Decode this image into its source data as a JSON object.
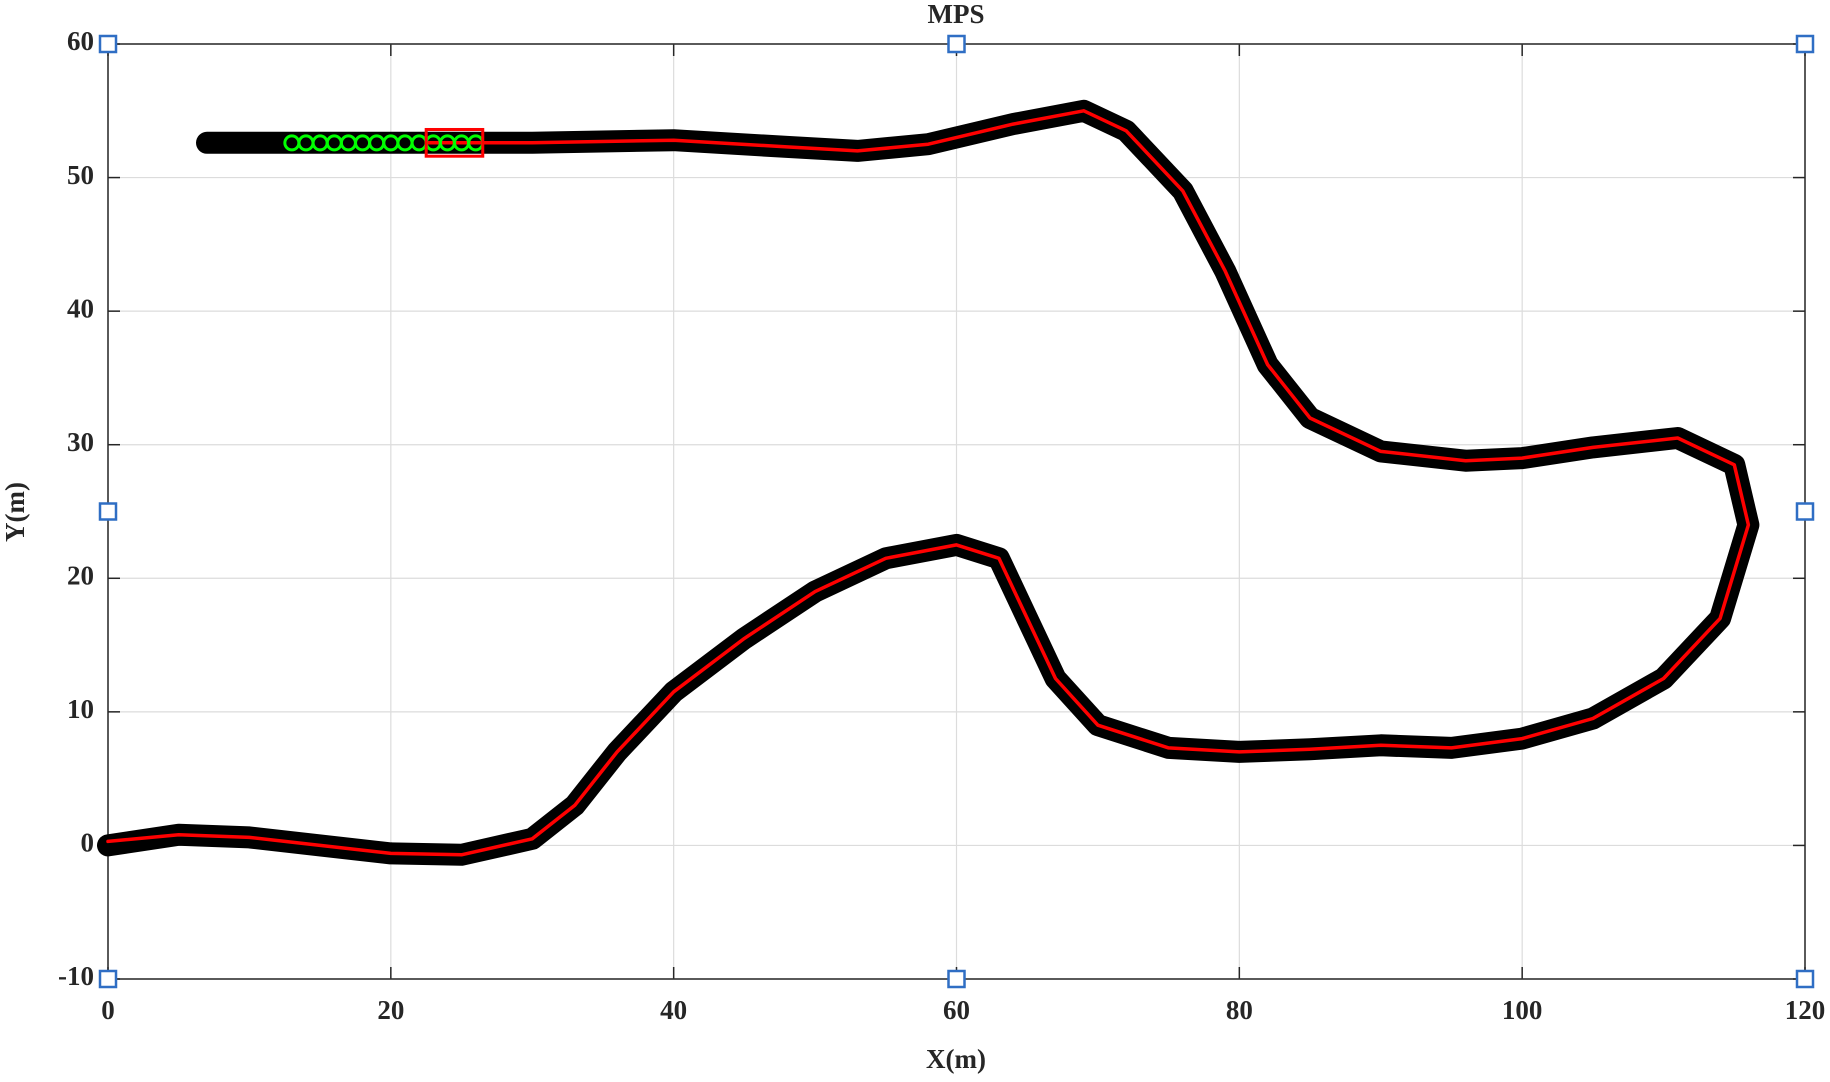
{
  "chart_data": {
    "type": "line",
    "title": "MPS",
    "x_label": "X(m)",
    "y_label": "Y(m)",
    "xlim": [
      0,
      120
    ],
    "ylim": [
      -10,
      60
    ],
    "xticks": [
      0,
      20,
      40,
      60,
      80,
      100,
      120
    ],
    "yticks": [
      -10,
      0,
      10,
      20,
      30,
      40,
      50,
      60
    ],
    "grid": true,
    "series": [
      {
        "style": "line",
        "color": "#000000",
        "x": [
          0,
          5,
          10,
          15,
          20,
          25,
          30,
          33,
          36,
          40,
          45,
          50,
          55,
          60,
          63,
          65,
          67,
          70,
          75,
          80,
          85,
          90,
          95,
          100,
          105,
          110,
          114,
          116,
          115,
          111,
          105,
          100,
          96,
          90,
          85,
          82,
          79,
          76,
          72,
          69,
          64,
          58,
          53,
          48,
          40,
          30,
          25,
          20,
          13,
          7
        ],
        "values": [
          0,
          0.8,
          0.6,
          0,
          -0.6,
          -0.7,
          0.5,
          3,
          7,
          11.5,
          15.5,
          19,
          21.5,
          22.5,
          21.5,
          17,
          12.5,
          9,
          7.3,
          7,
          7.2,
          7.5,
          7.3,
          8,
          9.5,
          12.5,
          17,
          24,
          28.5,
          30.5,
          29.8,
          29,
          28.8,
          29.5,
          32,
          36,
          43,
          49,
          53.5,
          55,
          54,
          52.5,
          52,
          52.3,
          52.8,
          52.6,
          52.6,
          52.6,
          52.6,
          52.6
        ]
      },
      {
        "style": "line",
        "color": "#ff0000",
        "x": [
          0,
          5,
          10,
          15,
          20,
          25,
          30,
          33,
          36,
          40,
          45,
          50,
          55,
          60,
          63,
          65,
          67,
          70,
          75,
          80,
          85,
          90,
          95,
          100,
          105,
          110,
          114,
          116,
          115,
          111,
          105,
          100,
          96,
          90,
          85,
          82,
          79,
          76,
          72,
          69,
          64,
          58,
          53,
          48,
          40,
          30,
          25,
          22.5
        ],
        "values": [
          0.3,
          0.8,
          0.6,
          0,
          -0.6,
          -0.7,
          0.5,
          3,
          7,
          11.5,
          15.5,
          19,
          21.5,
          22.5,
          21.5,
          17,
          12.5,
          9,
          7.3,
          7,
          7.2,
          7.5,
          7.3,
          8,
          9.5,
          12.5,
          17,
          24,
          28.5,
          30.5,
          29.8,
          29,
          28.8,
          29.5,
          32,
          36,
          43,
          49,
          53.5,
          55,
          54,
          52.5,
          52,
          52.3,
          52.8,
          52.6,
          52.6,
          52.6
        ]
      },
      {
        "style": "circle",
        "color": "#00ff00",
        "x": [
          13,
          14,
          15,
          16,
          17,
          18,
          19,
          20,
          21,
          22,
          23,
          24,
          25,
          26
        ],
        "values": [
          52.6,
          52.6,
          52.6,
          52.6,
          52.6,
          52.6,
          52.6,
          52.6,
          52.6,
          52.6,
          52.6,
          52.6,
          52.6,
          52.6
        ]
      }
    ],
    "vehicle_box": {
      "x": [
        22.5,
        26.5
      ],
      "y": [
        51.6,
        53.6
      ],
      "color": "#ff0000"
    }
  }
}
